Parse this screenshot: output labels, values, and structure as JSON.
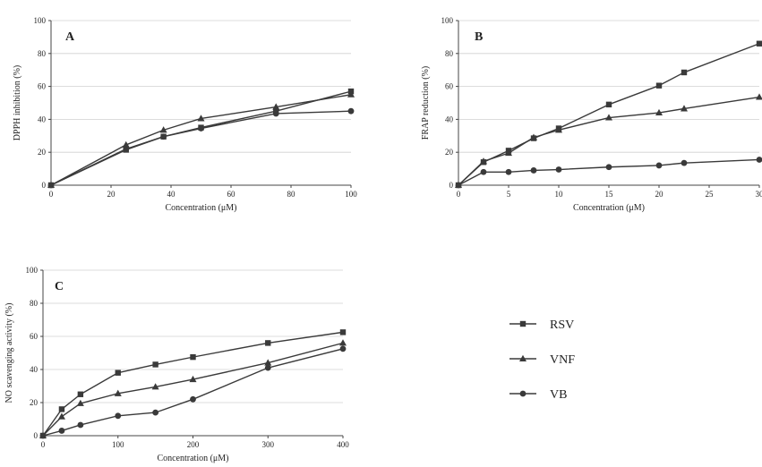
{
  "chart_data": [
    {
      "type": "line",
      "panel": "A",
      "xlabel": "Concentration (μM)",
      "ylabel": "DPPH inhibition (%)",
      "xlim": [
        0,
        100
      ],
      "ylim": [
        0,
        100
      ],
      "xticks": [
        0,
        20,
        40,
        60,
        80,
        100
      ],
      "yticks": [
        0,
        20,
        40,
        60,
        80,
        100
      ],
      "grid": "horizontal",
      "series": [
        {
          "name": "RSV",
          "marker": "square",
          "x": [
            0,
            25,
            37.5,
            50,
            75,
            100
          ],
          "values": [
            0,
            21.5,
            29.5,
            35,
            45,
            57
          ]
        },
        {
          "name": "VNF",
          "marker": "triangle",
          "x": [
            0,
            25,
            37.5,
            50,
            75,
            100
          ],
          "values": [
            0,
            24.5,
            33.5,
            40.5,
            47.5,
            55
          ]
        },
        {
          "name": "VB",
          "marker": "circle",
          "x": [
            0,
            25,
            37.5,
            50,
            75,
            100
          ],
          "values": [
            0,
            22,
            29.5,
            34.5,
            43.5,
            45
          ]
        }
      ]
    },
    {
      "type": "line",
      "panel": "B",
      "xlabel": "Concentration (μM)",
      "ylabel": "FRAP reduction (%)",
      "xlim": [
        0,
        30
      ],
      "ylim": [
        0,
        100
      ],
      "xticks": [
        0,
        5,
        10,
        15,
        20,
        25,
        30
      ],
      "yticks": [
        0,
        20,
        40,
        60,
        80,
        100
      ],
      "grid": "horizontal",
      "series": [
        {
          "name": "RSV",
          "marker": "square",
          "x": [
            0,
            2.5,
            5,
            7.5,
            10,
            15,
            20,
            22.5,
            30
          ],
          "values": [
            0,
            14,
            21,
            28.5,
            34.5,
            49,
            60.5,
            68.5,
            86
          ]
        },
        {
          "name": "VNF",
          "marker": "triangle",
          "x": [
            0,
            2.5,
            5,
            7.5,
            10,
            15,
            20,
            22.5,
            30
          ],
          "values": [
            0,
            14.5,
            19.5,
            29,
            33.5,
            41,
            44,
            46.5,
            53.5
          ]
        },
        {
          "name": "VB",
          "marker": "circle",
          "x": [
            0,
            2.5,
            5,
            7.5,
            10,
            15,
            20,
            22.5,
            30
          ],
          "values": [
            0,
            8,
            8,
            9,
            9.5,
            11,
            12,
            13.5,
            15.5
          ]
        }
      ]
    },
    {
      "type": "line",
      "panel": "C",
      "xlabel": "Concentration (μM)",
      "ylabel": "NO scavenging activity (%)",
      "xlim": [
        0,
        400
      ],
      "ylim": [
        0,
        100
      ],
      "xticks": [
        0,
        100,
        200,
        300,
        400
      ],
      "yticks": [
        0,
        20,
        40,
        60,
        80,
        100
      ],
      "grid": "horizontal",
      "series": [
        {
          "name": "RSV",
          "marker": "square",
          "x": [
            0,
            25,
            50,
            100,
            150,
            200,
            300,
            400
          ],
          "values": [
            0,
            16,
            25,
            38,
            43,
            47.5,
            56,
            62.5
          ]
        },
        {
          "name": "VNF",
          "marker": "triangle",
          "x": [
            0,
            25,
            50,
            100,
            150,
            200,
            300,
            400
          ],
          "values": [
            0,
            11.5,
            19.5,
            25.5,
            29.5,
            34,
            44,
            56
          ]
        },
        {
          "name": "VB",
          "marker": "circle",
          "x": [
            0,
            25,
            50,
            100,
            150,
            200,
            300,
            400
          ],
          "values": [
            0,
            3,
            6.5,
            12,
            14,
            22,
            41,
            52.5
          ]
        }
      ]
    }
  ],
  "legend": {
    "placement": "right of panel C",
    "entries": [
      {
        "name": "RSV",
        "marker": "square"
      },
      {
        "name": "VNF",
        "marker": "triangle"
      },
      {
        "name": "VB",
        "marker": "circle"
      }
    ]
  },
  "colors": {
    "series": "#3a3a3a",
    "axis": "#444444",
    "grid": "#d0d0d0"
  }
}
